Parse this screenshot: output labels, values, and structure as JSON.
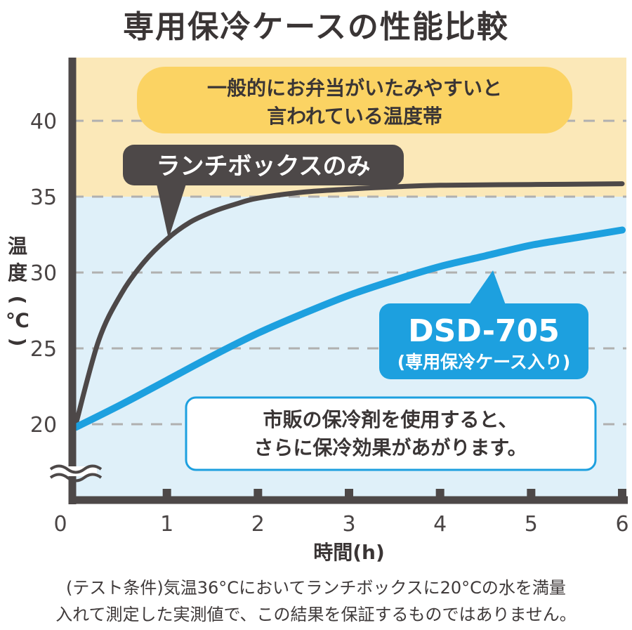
{
  "chart_data": {
    "type": "line",
    "title": "専用保冷ケースの性能比較",
    "xlabel": "時間(h)",
    "ylabel": "温度(℃)",
    "xlim": [
      0,
      6
    ],
    "ylim": [
      20,
      45
    ],
    "x_ticks": [
      "0",
      "1",
      "2",
      "3",
      "4",
      "5",
      "6"
    ],
    "y_ticks": [
      "20",
      "25",
      "30",
      "35",
      "40"
    ],
    "axis_break": true,
    "grid": "dashed horizontal",
    "zones": [
      {
        "label_lines": [
          "一般的にお弁当がいたみやすいと",
          "言われている温度帯"
        ],
        "from": 35,
        "to": 45,
        "color": "#fbe8b8"
      },
      {
        "from": 20,
        "to": 35,
        "color": "#dff0f9"
      }
    ],
    "series": [
      {
        "name": "ランチボックスのみ",
        "color": "#4d4848",
        "x": [
          0,
          0.25,
          0.5,
          0.75,
          1,
          1.25,
          1.5,
          1.75,
          2,
          2.5,
          3,
          3.5,
          4,
          5,
          6
        ],
        "values": [
          20,
          25.5,
          28.6,
          30.7,
          32.2,
          33.3,
          34.0,
          34.5,
          34.9,
          35.3,
          35.5,
          35.65,
          35.75,
          35.8,
          35.85
        ]
      },
      {
        "name": "DSD-705",
        "name_sub": "(専用保冷ケース入り)",
        "color": "#1da0df",
        "x": [
          0,
          0.5,
          1,
          1.5,
          2,
          2.5,
          3,
          3.5,
          4,
          4.5,
          5,
          5.5,
          6
        ],
        "values": [
          19.8,
          21.3,
          22.9,
          24.5,
          26.0,
          27.3,
          28.5,
          29.5,
          30.4,
          31.1,
          31.8,
          32.3,
          32.8
        ]
      }
    ],
    "note_lines": [
      "市販の保冷剤を使用すると、",
      "さらに保冷効果があがります。"
    ]
  },
  "footnote": {
    "line1": "(テスト条件)気温36°Cにおいてランチボックスに20°Cの水を満量",
    "line2": "入れて測定した実測値で、この結果を保証するものではありません。"
  },
  "colors": {
    "axis": "#4d4848",
    "grid": "#b0b0b0",
    "accent": "#1da0df"
  }
}
